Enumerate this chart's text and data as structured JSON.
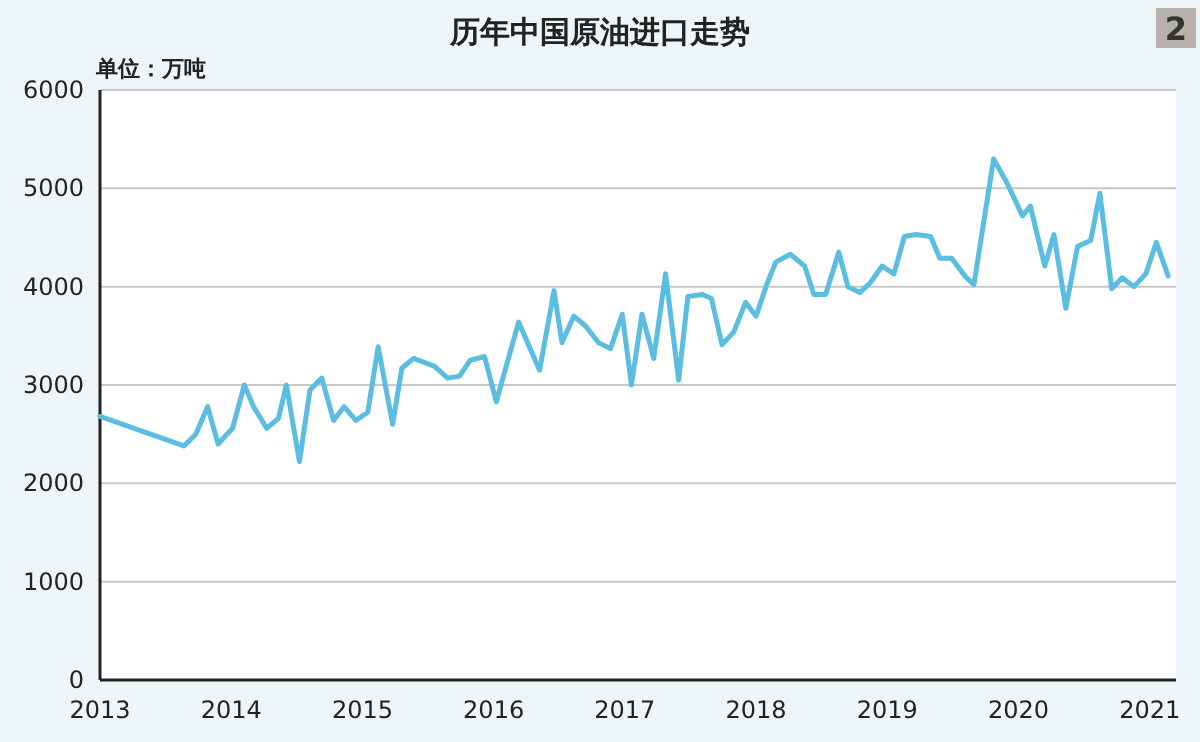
{
  "chart_data": {
    "type": "line",
    "title": "历年中国原油进口走势",
    "ylabel": "单位：万吨",
    "annotations": [
      "2"
    ],
    "color": "#5bbde0",
    "grid": "y",
    "xlim": [
      2013,
      2021.2
    ],
    "ylim": [
      0,
      6000
    ],
    "xticks": [
      2013,
      2014,
      2015,
      2016,
      2017,
      2018,
      2019,
      2020,
      2021
    ],
    "yticks": [
      0,
      1000,
      2000,
      3000,
      4000,
      5000,
      6000
    ],
    "x": [
      2013.0,
      2013.64,
      2013.73,
      2013.82,
      2013.9,
      2014.01,
      2014.1,
      2014.17,
      2014.27,
      2014.36,
      2014.42,
      2014.52,
      2014.6,
      2014.69,
      2014.78,
      2014.86,
      2014.95,
      2015.04,
      2015.12,
      2015.23,
      2015.3,
      2015.39,
      2015.55,
      2015.65,
      2015.74,
      2015.82,
      2015.93,
      2016.02,
      2016.19,
      2016.35,
      2016.46,
      2016.52,
      2016.61,
      2016.7,
      2016.8,
      2016.89,
      2016.98,
      2017.05,
      2017.13,
      2017.22,
      2017.31,
      2017.41,
      2017.48,
      2017.59,
      2017.66,
      2017.74,
      2017.83,
      2017.92,
      2018.0,
      2018.08,
      2018.15,
      2018.26,
      2018.37,
      2018.44,
      2018.53,
      2018.63,
      2018.7,
      2018.79,
      2018.87,
      2018.96,
      2019.05,
      2019.13,
      2019.22,
      2019.33,
      2019.4,
      2019.49,
      2019.59,
      2019.66,
      2019.81,
      2019.91,
      2020.03,
      2020.09,
      2020.2,
      2020.27,
      2020.36,
      2020.45,
      2020.55,
      2020.62,
      2020.71,
      2020.79,
      2020.88,
      2020.97,
      2021.05,
      2021.14
    ],
    "values": [
      2680,
      2380,
      2500,
      2780,
      2400,
      2560,
      3000,
      2780,
      2560,
      2660,
      3000,
      2220,
      2950,
      3070,
      2640,
      2780,
      2640,
      2720,
      3390,
      2600,
      3170,
      3270,
      3190,
      3070,
      3090,
      3250,
      3290,
      2830,
      3640,
      3150,
      3960,
      3430,
      3700,
      3600,
      3430,
      3370,
      3720,
      3000,
      3720,
      3270,
      4130,
      3050,
      3900,
      3920,
      3880,
      3410,
      3540,
      3840,
      3700,
      4020,
      4250,
      4330,
      4210,
      3920,
      3920,
      4350,
      4000,
      3940,
      4040,
      4210,
      4130,
      4510,
      4530,
      4510,
      4290,
      4290,
      4110,
      4020,
      5300,
      5060,
      4720,
      4820,
      4210,
      4530,
      3780,
      4410,
      4470,
      4950,
      3980,
      4090,
      4000,
      4130,
      4450,
      4110
    ]
  }
}
